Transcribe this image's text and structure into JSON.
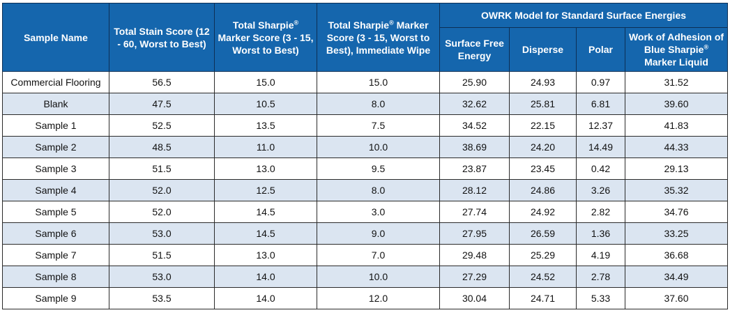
{
  "headers": {
    "sample_name": "Sample Name",
    "stain_score": "Total Stain Score (12 - 60, Worst to Best)",
    "sharpie_score_pre": "Total Sharpie",
    "sharpie_score_post": "Marker Score (3 - 15, Worst to Best)",
    "sharpie_wipe_pre": "Total Sharpie",
    "sharpie_wipe_post": "Marker Score (3 - 15, Worst to Best), Immediate Wipe",
    "owrk_group": "OWRK Model for Standard Surface Energies",
    "surface_free_energy": "Surface Free Energy",
    "disperse": "Disperse",
    "polar": "Polar",
    "work_adhesion_pre": "Work of Adhesion of Blue Sharpie",
    "work_adhesion_post": "Marker Liquid",
    "registered_mark": "®"
  },
  "rows": [
    {
      "name": "Commercial Flooring",
      "stain": "56.5",
      "marker": "15.0",
      "wipe": "15.0",
      "sfe": "25.90",
      "disperse": "24.93",
      "polar": "0.97",
      "woa": "31.52"
    },
    {
      "name": "Blank",
      "stain": "47.5",
      "marker": "10.5",
      "wipe": "8.0",
      "sfe": "32.62",
      "disperse": "25.81",
      "polar": "6.81",
      "woa": "39.60"
    },
    {
      "name": "Sample 1",
      "stain": "52.5",
      "marker": "13.5",
      "wipe": "7.5",
      "sfe": "34.52",
      "disperse": "22.15",
      "polar": "12.37",
      "woa": "41.83"
    },
    {
      "name": "Sample 2",
      "stain": "48.5",
      "marker": "11.0",
      "wipe": "10.0",
      "sfe": "38.69",
      "disperse": "24.20",
      "polar": "14.49",
      "woa": "44.33"
    },
    {
      "name": "Sample 3",
      "stain": "51.5",
      "marker": "13.0",
      "wipe": "9.5",
      "sfe": "23.87",
      "disperse": "23.45",
      "polar": "0.42",
      "woa": "29.13"
    },
    {
      "name": "Sample 4",
      "stain": "52.0",
      "marker": "12.5",
      "wipe": "8.0",
      "sfe": "28.12",
      "disperse": "24.86",
      "polar": "3.26",
      "woa": "35.32"
    },
    {
      "name": "Sample 5",
      "stain": "52.0",
      "marker": "14.5",
      "wipe": "3.0",
      "sfe": "27.74",
      "disperse": "24.92",
      "polar": "2.82",
      "woa": "34.76"
    },
    {
      "name": "Sample 6",
      "stain": "53.0",
      "marker": "14.5",
      "wipe": "9.0",
      "sfe": "27.95",
      "disperse": "26.59",
      "polar": "1.36",
      "woa": "33.25"
    },
    {
      "name": "Sample 7",
      "stain": "51.5",
      "marker": "13.0",
      "wipe": "7.0",
      "sfe": "29.48",
      "disperse": "25.29",
      "polar": "4.19",
      "woa": "36.68"
    },
    {
      "name": "Sample 8",
      "stain": "53.0",
      "marker": "14.0",
      "wipe": "10.0",
      "sfe": "27.29",
      "disperse": "24.52",
      "polar": "2.78",
      "woa": "34.49"
    },
    {
      "name": "Sample 9",
      "stain": "53.5",
      "marker": "14.0",
      "wipe": "12.0",
      "sfe": "30.04",
      "disperse": "24.71",
      "polar": "5.33",
      "woa": "37.60"
    }
  ],
  "colors": {
    "header_bg": "#1566ad",
    "alt_row_bg": "#dbe5f1"
  }
}
